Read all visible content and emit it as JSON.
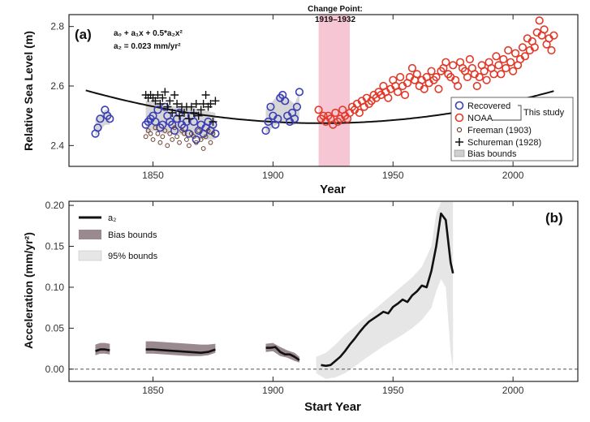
{
  "chart_data": [
    {
      "panel_label": "(a)",
      "type": "scatter",
      "xlabel": "Year",
      "ylabel": "Relative Sea Level (m)",
      "xlim": [
        1815,
        2027
      ],
      "ylim": [
        2.33,
        2.84
      ],
      "x_ticks": [
        1850,
        1900,
        1950,
        2000
      ],
      "y_ticks": [
        2.4,
        2.6,
        2.8
      ],
      "x_tick_labels": [
        "1850",
        "1900",
        "1950",
        "2000"
      ],
      "y_tick_labels": [
        "2.4",
        "2.6",
        "2.8"
      ],
      "equation_line1": "a₀ + a₁x + 0.5*a₂x²",
      "equation_line2": "a₂ = 0.023 mm/yr²",
      "change_point": {
        "title": "Change Point:",
        "range": "1919–1932",
        "x_start": 1919,
        "x_end": 1932,
        "color": "#f7c6d4"
      },
      "colors": {
        "recovered": "#3b3fb5",
        "noaa": "#e23a2a",
        "freeman": "#6b3e2e",
        "schureman": "#111111",
        "bias": "#cfcfcf",
        "fit": "#111111"
      },
      "legend": {
        "placement": "lower-right",
        "entries": [
          "Recovered",
          "NOAA",
          "Freeman (1903)",
          "Schureman (1928)",
          "Bias bounds"
        ],
        "group_label": "This study"
      },
      "fit_curve": {
        "x0": 1920,
        "c0": 2.475,
        "c1": 0.0,
        "c2": 1.15e-05
      },
      "series": [
        {
          "name": "Recovered",
          "marker": "circle-open",
          "x": [
            1826,
            1827,
            1828,
            1830,
            1831,
            1832,
            1847,
            1848,
            1849,
            1850,
            1851,
            1852,
            1853,
            1854,
            1855,
            1856,
            1857,
            1858,
            1859,
            1860,
            1861,
            1862,
            1863,
            1864,
            1865,
            1866,
            1867,
            1868,
            1869,
            1870,
            1871,
            1872,
            1873,
            1874,
            1875,
            1876,
            1897,
            1898,
            1899,
            1900,
            1901,
            1902,
            1903,
            1904,
            1905,
            1906,
            1907,
            1908,
            1909,
            1910,
            1911
          ],
          "y": [
            2.44,
            2.46,
            2.49,
            2.52,
            2.5,
            2.49,
            2.47,
            2.48,
            2.49,
            2.5,
            2.48,
            2.52,
            2.46,
            2.47,
            2.53,
            2.5,
            2.48,
            2.47,
            2.45,
            2.49,
            2.51,
            2.47,
            2.46,
            2.48,
            2.44,
            2.5,
            2.48,
            2.42,
            2.45,
            2.47,
            2.44,
            2.46,
            2.48,
            2.45,
            2.47,
            2.44,
            2.45,
            2.48,
            2.53,
            2.5,
            2.47,
            2.49,
            2.56,
            2.57,
            2.55,
            2.5,
            2.48,
            2.51,
            2.49,
            2.53,
            2.58
          ]
        },
        {
          "name": "NOAA",
          "marker": "circle-open",
          "x": [
            1919,
            1920,
            1921,
            1922,
            1923,
            1924,
            1925,
            1926,
            1927,
            1928,
            1929,
            1930,
            1931,
            1932,
            1933,
            1934,
            1935,
            1936,
            1937,
            1938,
            1939,
            1940,
            1941,
            1942,
            1943,
            1944,
            1945,
            1946,
            1947,
            1948,
            1949,
            1950,
            1951,
            1952,
            1953,
            1954,
            1955,
            1956,
            1957,
            1958,
            1959,
            1960,
            1961,
            1962,
            1963,
            1964,
            1965,
            1966,
            1967,
            1968,
            1969,
            1970,
            1971,
            1972,
            1973,
            1974,
            1975,
            1976,
            1977,
            1978,
            1979,
            1980,
            1981,
            1982,
            1983,
            1984,
            1985,
            1986,
            1987,
            1988,
            1989,
            1990,
            1991,
            1992,
            1993,
            1994,
            1995,
            1996,
            1997,
            1998,
            1999,
            2000,
            2001,
            2002,
            2003,
            2004,
            2005,
            2006,
            2007,
            2008,
            2009,
            2010,
            2011,
            2012,
            2013,
            2014,
            2015,
            2016,
            2017
          ],
          "y": [
            2.52,
            2.49,
            2.5,
            2.48,
            2.5,
            2.49,
            2.47,
            2.51,
            2.48,
            2.49,
            2.52,
            2.5,
            2.49,
            2.51,
            2.53,
            2.52,
            2.54,
            2.51,
            2.55,
            2.53,
            2.56,
            2.54,
            2.55,
            2.57,
            2.56,
            2.58,
            2.57,
            2.6,
            2.58,
            2.56,
            2.59,
            2.62,
            2.6,
            2.58,
            2.63,
            2.6,
            2.57,
            2.61,
            2.63,
            2.66,
            2.62,
            2.64,
            2.6,
            2.62,
            2.59,
            2.63,
            2.61,
            2.65,
            2.62,
            2.63,
            2.59,
            2.65,
            2.66,
            2.68,
            2.64,
            2.63,
            2.67,
            2.62,
            2.6,
            2.68,
            2.66,
            2.65,
            2.63,
            2.69,
            2.66,
            2.64,
            2.6,
            2.63,
            2.67,
            2.65,
            2.62,
            2.68,
            2.66,
            2.64,
            2.7,
            2.67,
            2.64,
            2.69,
            2.66,
            2.72,
            2.68,
            2.65,
            2.71,
            2.67,
            2.69,
            2.73,
            2.7,
            2.76,
            2.72,
            2.75,
            2.73,
            2.78,
            2.82,
            2.77,
            2.79,
            2.74,
            2.76,
            2.72,
            2.77
          ]
        },
        {
          "name": "Freeman (1903)",
          "marker": "circle-open-small",
          "x": [
            1847,
            1848,
            1849,
            1850,
            1851,
            1852,
            1853,
            1854,
            1855,
            1856,
            1857,
            1858,
            1859,
            1860,
            1861,
            1862,
            1863,
            1864,
            1865,
            1866,
            1867,
            1868,
            1869,
            1870,
            1871,
            1872,
            1873,
            1874,
            1875
          ],
          "y": [
            2.43,
            2.45,
            2.44,
            2.42,
            2.46,
            2.44,
            2.41,
            2.43,
            2.45,
            2.4,
            2.44,
            2.42,
            2.46,
            2.43,
            2.41,
            2.45,
            2.44,
            2.42,
            2.4,
            2.44,
            2.43,
            2.41,
            2.45,
            2.42,
            2.39,
            2.43,
            2.45,
            2.41,
            2.44
          ]
        },
        {
          "name": "Schureman (1928)",
          "marker": "plus",
          "x": [
            1847,
            1848,
            1849,
            1850,
            1851,
            1852,
            1853,
            1854,
            1855,
            1856,
            1857,
            1858,
            1859,
            1860,
            1861,
            1862,
            1863,
            1864,
            1865,
            1866,
            1867,
            1868,
            1869,
            1870,
            1871,
            1872,
            1873,
            1874,
            1875,
            1876
          ],
          "y": [
            2.57,
            2.56,
            2.57,
            2.56,
            2.55,
            2.57,
            2.54,
            2.56,
            2.58,
            2.53,
            2.55,
            2.51,
            2.57,
            2.54,
            2.5,
            2.53,
            2.51,
            2.53,
            2.49,
            2.53,
            2.51,
            2.54,
            2.5,
            2.52,
            2.54,
            2.57,
            2.53,
            2.54,
            2.48,
            2.55
          ]
        }
      ],
      "bias_bounds": [
        {
          "x": [
            1826,
            1828,
            1830,
            1832
          ],
          "low": [
            2.43,
            2.45,
            2.47,
            2.47
          ],
          "high": [
            2.49,
            2.5,
            2.52,
            2.52
          ]
        },
        {
          "x": [
            1847,
            1850,
            1855,
            1860,
            1865,
            1870,
            1876
          ],
          "low": [
            2.44,
            2.45,
            2.44,
            2.44,
            2.43,
            2.42,
            2.42
          ],
          "high": [
            2.55,
            2.55,
            2.54,
            2.53,
            2.53,
            2.52,
            2.51
          ]
        },
        {
          "x": [
            1897,
            1900,
            1903,
            1906,
            1909,
            1911
          ],
          "low": [
            2.44,
            2.46,
            2.48,
            2.47,
            2.47,
            2.49
          ],
          "high": [
            2.52,
            2.55,
            2.58,
            2.56,
            2.54,
            2.58
          ]
        }
      ]
    },
    {
      "panel_label": "(b)",
      "type": "line",
      "xlabel": "Start Year",
      "ylabel": "Acceleration (mm/yr²)",
      "xlim": [
        1815,
        2027
      ],
      "ylim": [
        -0.015,
        0.205
      ],
      "x_ticks": [
        1850,
        1900,
        1950,
        2000
      ],
      "y_ticks": [
        0.0,
        0.05,
        0.1,
        0.15,
        0.2
      ],
      "x_tick_labels": [
        "1850",
        "1900",
        "1950",
        "2000"
      ],
      "y_tick_labels": [
        "0.00",
        "0.05",
        "0.10",
        "0.15",
        "0.20"
      ],
      "zero_line": true,
      "colors": {
        "a2": "#111111",
        "bias": "#9a8a90",
        "ci95": "#e6e6e6"
      },
      "legend": {
        "placement": "top-left",
        "entries": [
          "a₂",
          "Bias bounds",
          "95% bounds"
        ]
      },
      "series": [
        {
          "name": "a₂",
          "segments": [
            {
              "x": [
                1826,
                1828,
                1830,
                1832
              ],
              "y": [
                0.022,
                0.024,
                0.024,
                0.023
              ]
            },
            {
              "x": [
                1847,
                1850,
                1855,
                1860,
                1865,
                1870,
                1873,
                1876
              ],
              "y": [
                0.024,
                0.024,
                0.023,
                0.022,
                0.021,
                0.02,
                0.021,
                0.024
              ]
            },
            {
              "x": [
                1897,
                1899,
                1901,
                1903,
                1905,
                1907,
                1909,
                1911
              ],
              "y": [
                0.026,
                0.026,
                0.027,
                0.021,
                0.018,
                0.018,
                0.015,
                0.011
              ]
            },
            {
              "x": [
                1920,
                1922,
                1924,
                1926,
                1928,
                1930,
                1932,
                1934,
                1936,
                1938,
                1940,
                1942,
                1944,
                1946,
                1948,
                1950,
                1952,
                1954,
                1956,
                1958,
                1960,
                1962,
                1964,
                1966,
                1968,
                1970,
                1972,
                1974,
                1975
              ],
              "y": [
                0.005,
                0.004,
                0.005,
                0.01,
                0.015,
                0.022,
                0.03,
                0.037,
                0.045,
                0.052,
                0.058,
                0.062,
                0.066,
                0.07,
                0.068,
                0.076,
                0.08,
                0.085,
                0.082,
                0.09,
                0.095,
                0.102,
                0.1,
                0.12,
                0.15,
                0.19,
                0.182,
                0.13,
                0.117
              ]
            }
          ]
        }
      ],
      "bias_bands": [
        {
          "x": [
            1826,
            1828,
            1830,
            1832
          ],
          "low": [
            0.017,
            0.019,
            0.019,
            0.018
          ],
          "high": [
            0.03,
            0.032,
            0.032,
            0.031
          ]
        },
        {
          "x": [
            1847,
            1850,
            1855,
            1860,
            1865,
            1870,
            1873,
            1876
          ],
          "low": [
            0.019,
            0.019,
            0.018,
            0.017,
            0.016,
            0.016,
            0.017,
            0.02
          ],
          "high": [
            0.034,
            0.034,
            0.033,
            0.032,
            0.031,
            0.03,
            0.03,
            0.031
          ]
        },
        {
          "x": [
            1897,
            1900,
            1903,
            1906,
            1909,
            1911
          ],
          "low": [
            0.021,
            0.022,
            0.016,
            0.014,
            0.01,
            0.008
          ],
          "high": [
            0.031,
            0.032,
            0.027,
            0.023,
            0.02,
            0.015
          ]
        }
      ],
      "ci95_band": {
        "x": [
          1918,
          1922,
          1926,
          1930,
          1934,
          1938,
          1942,
          1946,
          1950,
          1954,
          1958,
          1962,
          1966,
          1968,
          1970,
          1972,
          1974,
          1975
        ],
        "low": [
          -0.005,
          -0.012,
          -0.01,
          -0.005,
          0.003,
          0.012,
          0.02,
          0.028,
          0.035,
          0.042,
          0.05,
          0.06,
          0.075,
          0.095,
          0.11,
          0.1,
          0.02,
          0.0
        ],
        "high": [
          0.015,
          0.02,
          0.03,
          0.042,
          0.052,
          0.062,
          0.072,
          0.082,
          0.092,
          0.102,
          0.112,
          0.125,
          0.15,
          0.19,
          0.205,
          0.205,
          0.205,
          0.205
        ]
      }
    }
  ]
}
